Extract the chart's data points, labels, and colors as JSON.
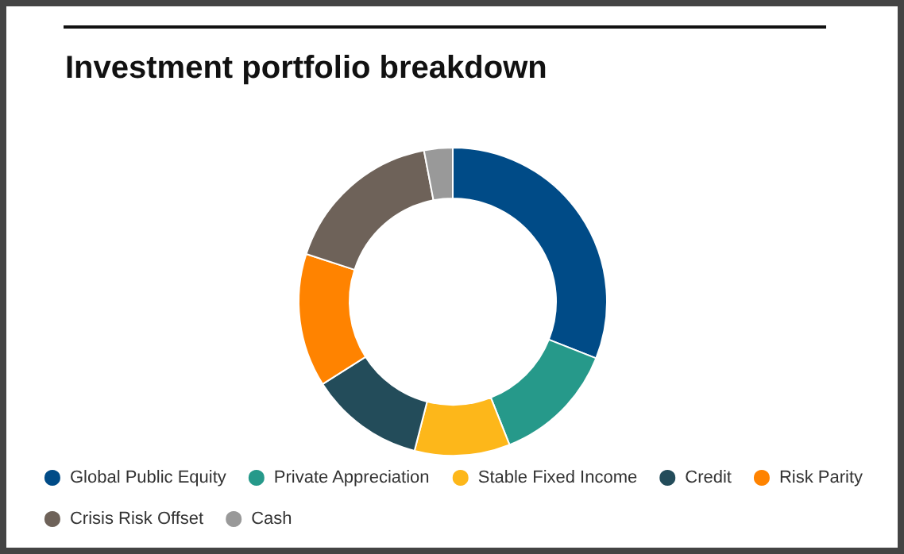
{
  "chart_data": {
    "type": "donut",
    "title": "Investment portfolio breakdown",
    "categories": [
      "Global Public Equity",
      "Private Appreciation",
      "Stable Fixed Income",
      "Credit",
      "Risk Parity",
      "Crisis Risk Offset",
      "Cash"
    ],
    "values": [
      31,
      13,
      10,
      12,
      14,
      17,
      3
    ],
    "colors": [
      "#004b87",
      "#26998a",
      "#fdb71a",
      "#234c5a",
      "#ff8300",
      "#6e6259",
      "#999999"
    ],
    "legend": "bottom"
  }
}
